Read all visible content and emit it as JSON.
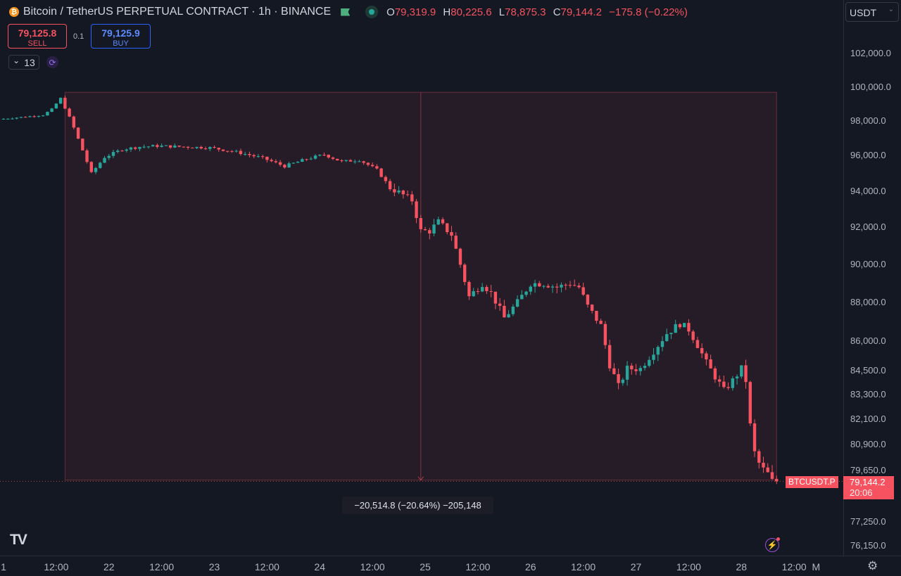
{
  "header": {
    "coin_icon": "bitcoin-icon",
    "coin_glyph": "₿",
    "title": "Bitcoin / TetherUS PERPETUAL CONTRACT · 1h · BINANCE",
    "ohlc": {
      "o_label": "O",
      "o": "79,319.9",
      "h_label": "H",
      "h": "80,225.6",
      "l_label": "L",
      "l": "78,875.3",
      "c_label": "C",
      "c": "79,144.2",
      "change": "−175.8 (−0.22%)"
    }
  },
  "trade": {
    "sell_price": "79,125.8",
    "sell_label": "SELL",
    "spread": "0.1",
    "buy_price": "79,125.9",
    "buy_label": "BUY"
  },
  "indicators": {
    "chevron": "⌄",
    "count": "13"
  },
  "currency": {
    "value": "USDT",
    "caret": "⌄"
  },
  "measure_label": "−20,514.8 (−20.64%) −205,148",
  "price_tag": {
    "symbol": "BTCUSDT.P",
    "price": "79,144.2",
    "countdown": "20:06"
  },
  "logo": "TV",
  "colors": {
    "up": "#26a69a",
    "down": "#f7525f",
    "background": "#141823",
    "range_fill": "#f7525f"
  },
  "chart_data": {
    "type": "candlestick",
    "x_unit": "hour index from Feb 21 00:00 (1h bars)",
    "x_ticks": [
      {
        "label": "1",
        "x": 0
      },
      {
        "label": "12:00",
        "x": 12
      },
      {
        "label": "22",
        "x": 24
      },
      {
        "label": "12:00",
        "x": 36
      },
      {
        "label": "23",
        "x": 48
      },
      {
        "label": "12:00",
        "x": 60
      },
      {
        "label": "24",
        "x": 72
      },
      {
        "label": "12:00",
        "x": 84
      },
      {
        "label": "25",
        "x": 96
      },
      {
        "label": "12:00",
        "x": 108
      },
      {
        "label": "26",
        "x": 120
      },
      {
        "label": "12:00",
        "x": 132
      },
      {
        "label": "27",
        "x": 144
      },
      {
        "label": "12:00",
        "x": 156
      },
      {
        "label": "28",
        "x": 168
      },
      {
        "label": "12:00",
        "x": 180
      },
      {
        "label": "M",
        "x": 185
      }
    ],
    "y_ticks": [
      {
        "label": "102,000.0",
        "value": 102000
      },
      {
        "label": "100,000.0",
        "value": 100000
      },
      {
        "label": "98,000.0",
        "value": 98000
      },
      {
        "label": "96,000.0",
        "value": 96000
      },
      {
        "label": "94,000.0",
        "value": 94000
      },
      {
        "label": "92,000.0",
        "value": 92000
      },
      {
        "label": "90,000.0",
        "value": 90000
      },
      {
        "label": "88,000.0",
        "value": 88000
      },
      {
        "label": "86,000.0",
        "value": 86000
      },
      {
        "label": "84,500.0",
        "value": 84500
      },
      {
        "label": "83,300.0",
        "value": 83300
      },
      {
        "label": "82,100.0",
        "value": 82100
      },
      {
        "label": "80,900.0",
        "value": 80900
      },
      {
        "label": "79,650.0",
        "value": 79650
      },
      {
        "label": "77,250.0",
        "value": 77250
      },
      {
        "label": "76,150.0",
        "value": 76150
      }
    ],
    "measure_range": {
      "x_start": 14,
      "x_end": 176,
      "y_top": 99700,
      "y_bottom": 79200
    },
    "last_price": 79144.2,
    "path_points": [
      [
        0,
        98100
      ],
      [
        6,
        98250
      ],
      [
        10,
        98350
      ],
      [
        12,
        98700
      ],
      [
        14,
        99350
      ],
      [
        15,
        98800
      ],
      [
        17,
        97600
      ],
      [
        19,
        96300
      ],
      [
        21,
        95000
      ],
      [
        24,
        95900
      ],
      [
        28,
        96350
      ],
      [
        32,
        96500
      ],
      [
        36,
        96550
      ],
      [
        42,
        96500
      ],
      [
        48,
        96450
      ],
      [
        54,
        96200
      ],
      [
        60,
        95850
      ],
      [
        65,
        95400
      ],
      [
        70,
        95800
      ],
      [
        74,
        96050
      ],
      [
        78,
        95650
      ],
      [
        82,
        95750
      ],
      [
        86,
        95200
      ],
      [
        89,
        94200
      ],
      [
        92,
        93800
      ],
      [
        94,
        93500
      ],
      [
        96,
        91800
      ],
      [
        98,
        91800
      ],
      [
        100,
        92300
      ],
      [
        103,
        91600
      ],
      [
        105,
        90000
      ],
      [
        107,
        88300
      ],
      [
        110,
        89000
      ],
      [
        112,
        88500
      ],
      [
        115,
        87200
      ],
      [
        118,
        88000
      ],
      [
        121,
        89000
      ],
      [
        124,
        89000
      ],
      [
        127,
        88800
      ],
      [
        130,
        89000
      ],
      [
        132,
        88800
      ],
      [
        134,
        87800
      ],
      [
        137,
        86800
      ],
      [
        139,
        84800
      ],
      [
        141,
        83700
      ],
      [
        143,
        84600
      ],
      [
        146,
        84600
      ],
      [
        149,
        85500
      ],
      [
        152,
        86400
      ],
      [
        155,
        86900
      ],
      [
        157,
        86600
      ],
      [
        159,
        85800
      ],
      [
        161,
        84900
      ],
      [
        163,
        84200
      ],
      [
        165,
        83500
      ],
      [
        167,
        84000
      ],
      [
        169,
        84600
      ],
      [
        170,
        84000
      ],
      [
        171,
        81800
      ],
      [
        172,
        80500
      ],
      [
        173,
        80000
      ],
      [
        174,
        79700
      ],
      [
        175,
        79500
      ],
      [
        176,
        79150
      ]
    ]
  }
}
